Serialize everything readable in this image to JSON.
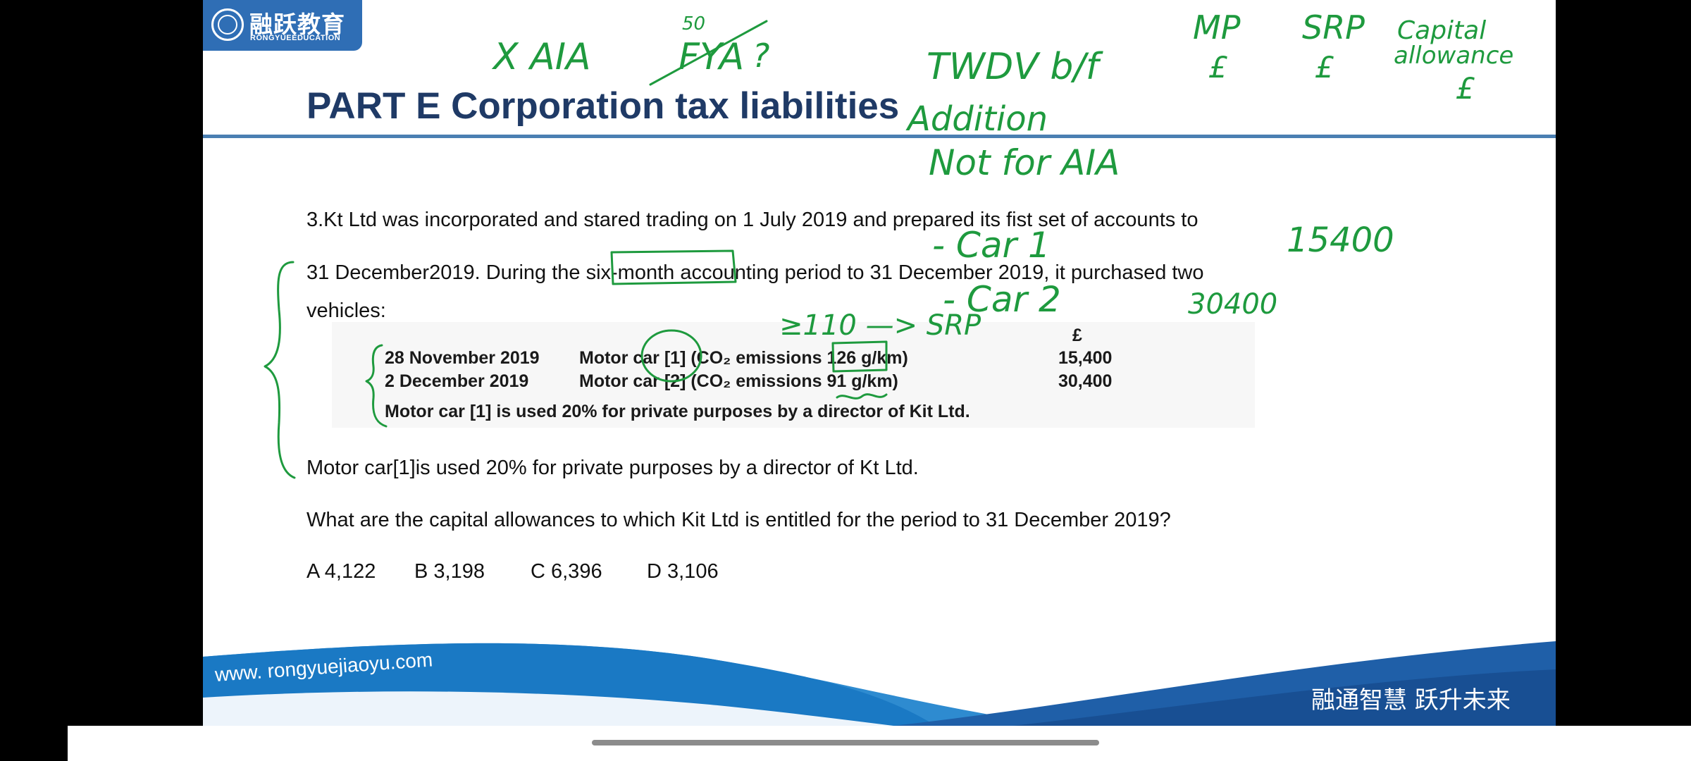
{
  "logo": {
    "cn": "融跃教育",
    "en": "RONGYUEEDUCATION"
  },
  "slide": {
    "title": "PART E Corporation tax liabilities",
    "para1": "3.Kt Ltd was incorporated and stared trading on 1 July 2019 and prepared its fist set of accounts to",
    "para2": "31 December2019. During the six-month accounting period to 31 December 2019, it purchased two",
    "para3": "vehicles:",
    "table": {
      "currency": "£",
      "rows": [
        {
          "date": "28 November 2019",
          "desc": "Motor car [1] (CO₂ emissions 126 g/km)",
          "amount": "15,400"
        },
        {
          "date": "2 December 2019",
          "desc": "Motor car [2] (CO₂ emissions 91 g/km)",
          "amount": "30,400"
        }
      ],
      "note": "Motor car [1] is used 20% for private purposes by a director of Kit Ltd."
    },
    "para4": "Motor car[1]is used 20% for private purposes by a director of Kt Ltd.",
    "question": "What are the capital allowances to which Kit Ltd is entitled for the period to 31 December 2019?",
    "answers": [
      "A  4,122",
      "B  3,198",
      "C  6,396",
      "D  3,106"
    ]
  },
  "footer": {
    "url": "www. rongyuejiaoyu.com",
    "slogan": "融通智慧  跃升未来"
  },
  "annotations": {
    "xaia": "X AIA",
    "fya": "FYA",
    "fya_q": "?",
    "fya_pct": "50",
    "twdv": "TWDV b/f",
    "addition": "Addition",
    "not_aia": "Not for AIA",
    "mp": "MP",
    "srp": "SRP",
    "ca1": "Capital",
    "ca2": "allowance",
    "pound": "£",
    "car1": "- Car 1",
    "car2": "- Car 2",
    "v1": "15400",
    "v2": "30400",
    "srp_note": "≥110 —> SRP"
  },
  "colors": {
    "ink": "#1e9a3e",
    "brand_blue": "#2f6eb5",
    "title": "#1f3a66"
  }
}
